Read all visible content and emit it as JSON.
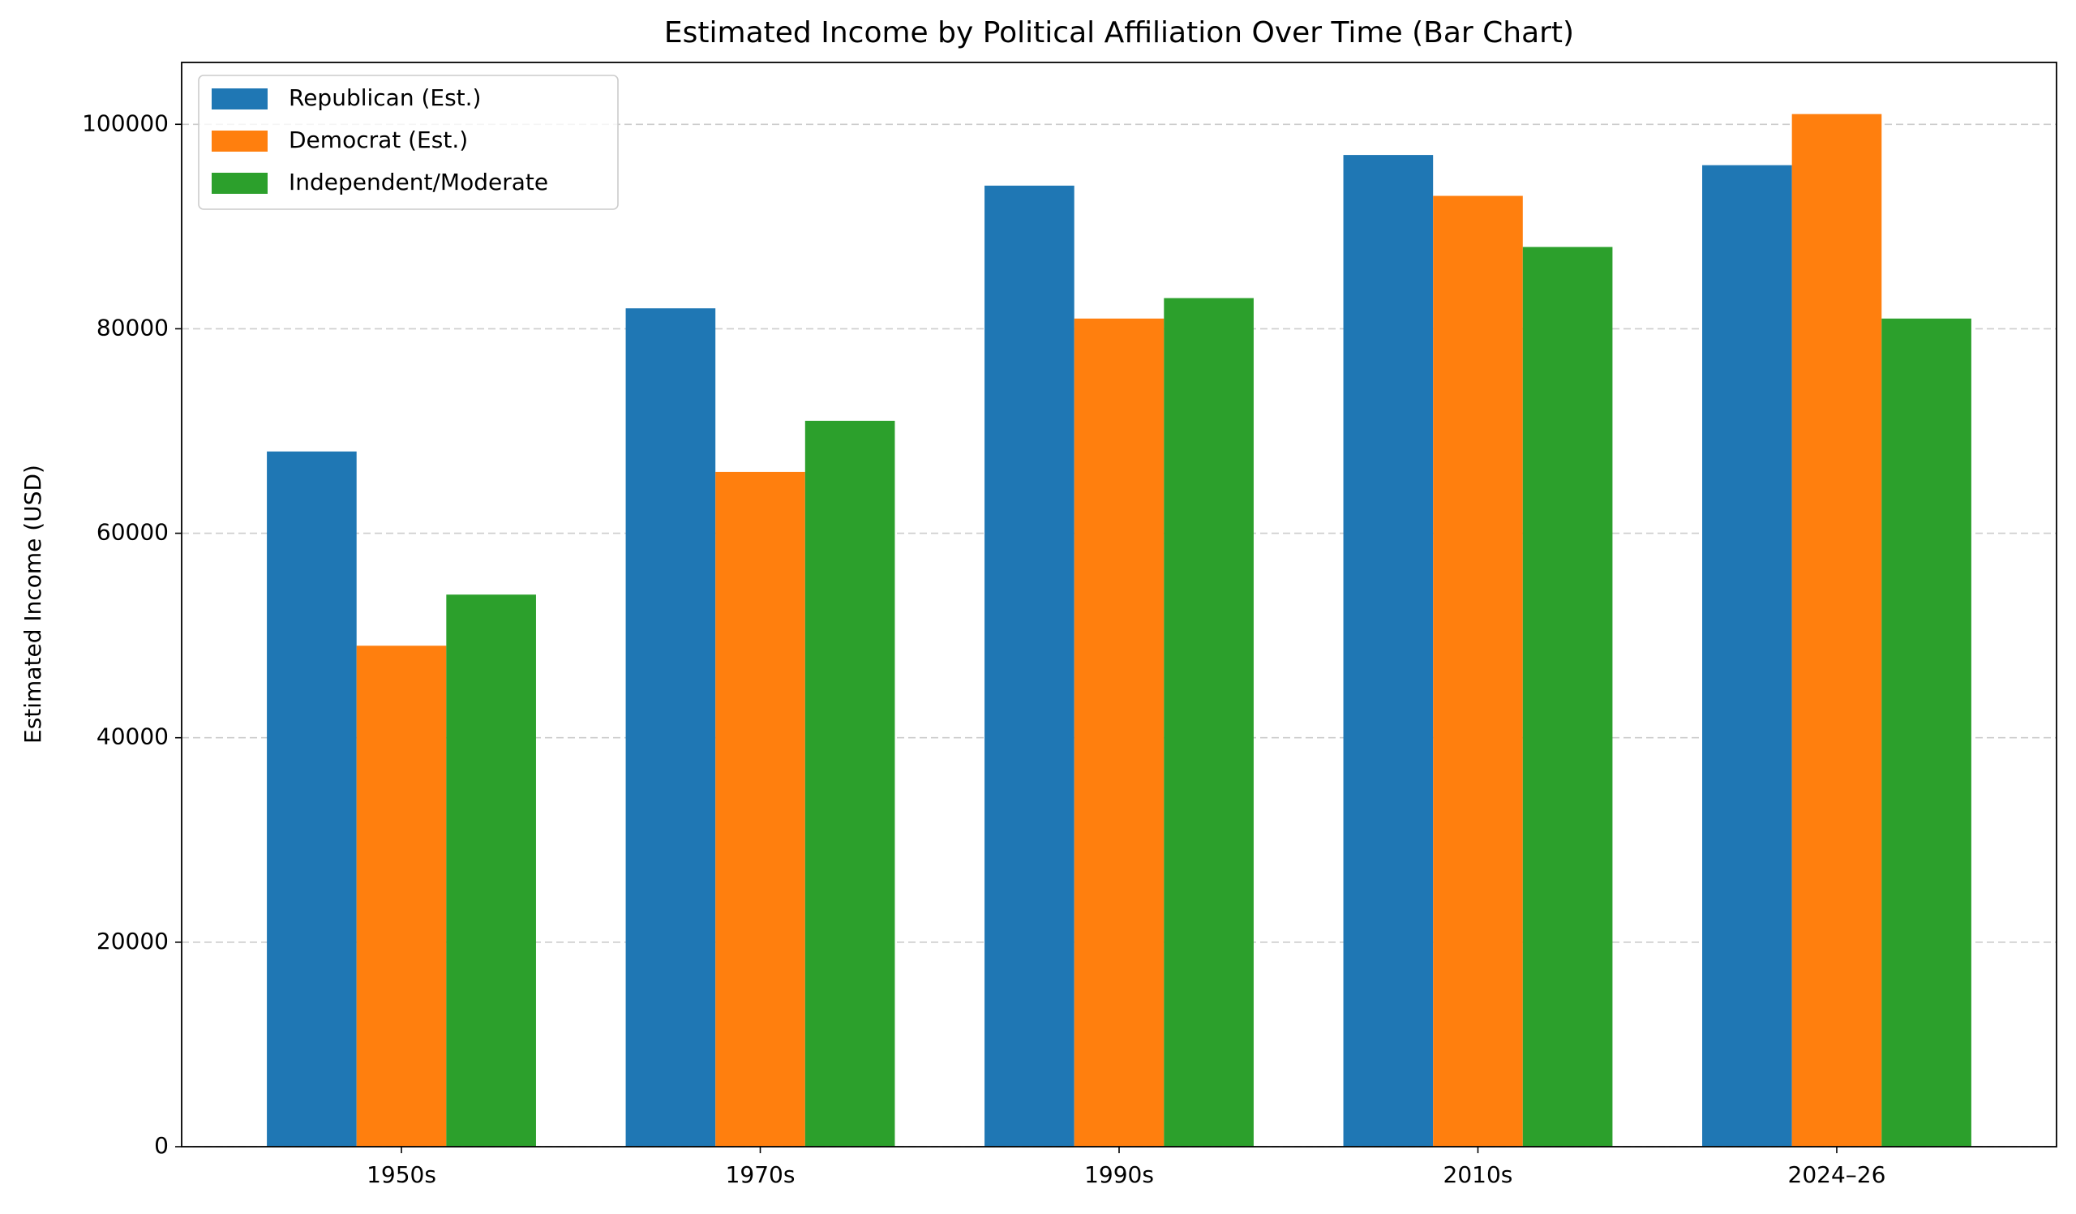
{
  "chart_data": {
    "type": "bar",
    "title": "Estimated Income by Political Affiliation Over Time (Bar Chart)",
    "y_label": "Estimated Income (USD)",
    "categories": [
      "1950s",
      "1970s",
      "1990s",
      "2010s",
      "2024–26"
    ],
    "series": [
      {
        "name": "Republican (Est.)",
        "color": "#1f77b4",
        "values": [
          68000,
          82000,
          94000,
          97000,
          96000
        ]
      },
      {
        "name": "Democrat (Est.)",
        "color": "#ff7f0e",
        "values": [
          49000,
          66000,
          81000,
          93000,
          101000
        ]
      },
      {
        "name": "Independent/Moderate",
        "color": "#2ca02c",
        "values": [
          54000,
          71000,
          83000,
          88000,
          81000
        ]
      }
    ],
    "ylim": [
      0,
      106050
    ],
    "yticks": [
      0,
      20000,
      40000,
      60000,
      80000,
      100000
    ],
    "grid": true,
    "legend": "upper-left"
  }
}
